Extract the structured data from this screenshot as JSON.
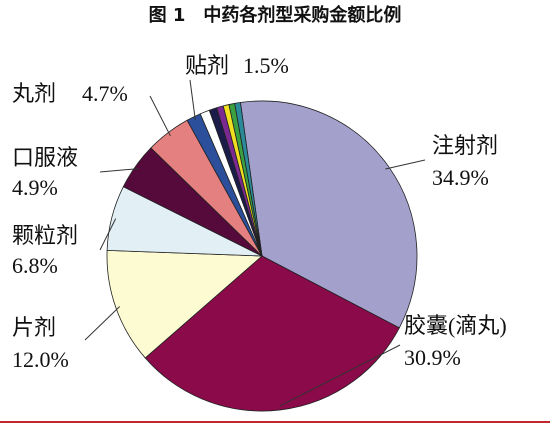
{
  "chart_data": {
    "type": "pie",
    "title": "图 1　中药各剂型采购金额比例",
    "categories": [
      "注射剂",
      "胶囊(滴丸)",
      "片剂",
      "颗粒剂",
      "口服液",
      "丸剂",
      "贴剂",
      null,
      null,
      null,
      null,
      null,
      null
    ],
    "values": [
      34.9,
      30.9,
      12.0,
      6.8,
      4.9,
      4.7,
      1.5,
      1.0,
      0.8,
      0.7,
      0.6,
      0.6,
      0.6
    ],
    "value_labels": [
      "34.9%",
      "30.9%",
      "12.0%",
      "6.8%",
      "4.9%",
      "4.7%",
      "1.5%",
      null,
      null,
      null,
      null,
      null,
      null
    ],
    "colors": [
      "#a3a0cc",
      "#8a0a4a",
      "#fdfbd2",
      "#e2f0f6",
      "#560a3c",
      "#e58080",
      "#2c4f9c",
      "#ffffff",
      "#1c1c4a",
      "#7a2a90",
      "#f0e020",
      "#3aa040",
      "#2a8a9a"
    ]
  }
}
